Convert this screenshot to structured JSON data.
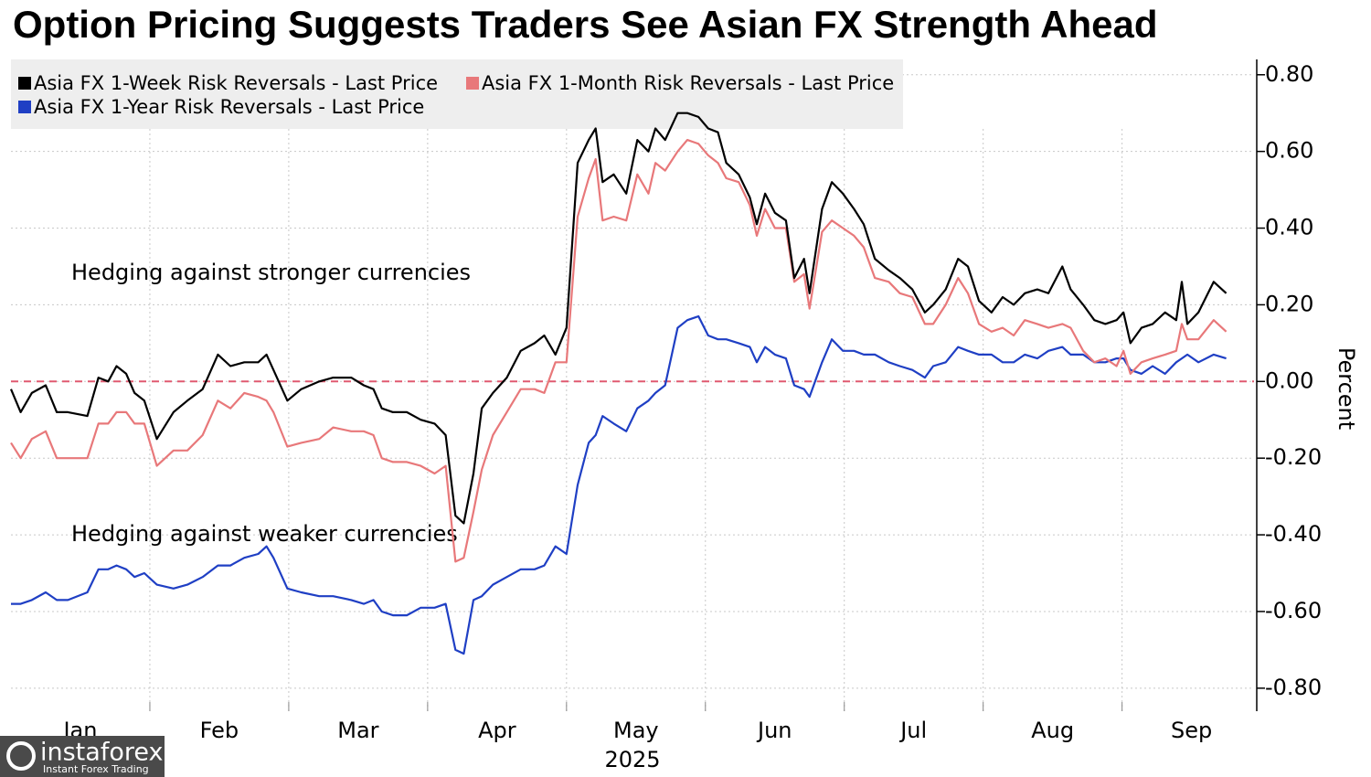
{
  "chart_data": {
    "type": "line",
    "title": "Option Pricing Suggests Traders See Asian FX Strength Ahead",
    "y_axis_label": "Percent",
    "x_axis_sublabel": "2025",
    "annotations": [
      "Hedging against stronger currencies",
      "Hedging against weaker currencies"
    ],
    "xlim": [
      0,
      8.95
    ],
    "xticks": [
      {
        "value": 0.5,
        "label": "Jan"
      },
      {
        "value": 1.5,
        "label": "Feb"
      },
      {
        "value": 2.5,
        "label": "Mar"
      },
      {
        "value": 3.5,
        "label": "Apr"
      },
      {
        "value": 4.5,
        "label": "May"
      },
      {
        "value": 5.5,
        "label": "Jun"
      },
      {
        "value": 6.5,
        "label": "Jul"
      },
      {
        "value": 7.5,
        "label": "Aug"
      },
      {
        "value": 8.5,
        "label": "Sep"
      }
    ],
    "ylim": [
      -0.86,
      0.84
    ],
    "yticks": [
      {
        "value": 0.8,
        "label": "0.80"
      },
      {
        "value": 0.6,
        "label": "0.60"
      },
      {
        "value": 0.4,
        "label": "0.40"
      },
      {
        "value": 0.2,
        "label": "0.20"
      },
      {
        "value": 0,
        "label": "0.00"
      },
      {
        "value": -0.2,
        "label": "-0.20"
      },
      {
        "value": -0.4,
        "label": "-0.40"
      },
      {
        "value": -0.6,
        "label": "-0.60"
      },
      {
        "value": -0.8,
        "label": "-0.80"
      }
    ],
    "grid": true,
    "y_axis_side": "right",
    "legend": "top-left",
    "zero_line": {
      "color": "#e05a70",
      "dashed": true
    },
    "x": [
      0,
      0.07,
      0.15,
      0.25,
      0.33,
      0.41,
      0.55,
      0.63,
      0.7,
      0.76,
      0.83,
      0.89,
      0.96,
      1.05,
      1.17,
      1.27,
      1.38,
      1.49,
      1.58,
      1.68,
      1.78,
      1.84,
      1.89,
      1.99,
      2.09,
      2.22,
      2.32,
      2.45,
      2.54,
      2.61,
      2.67,
      2.75,
      2.85,
      2.95,
      3.05,
      3.13,
      3.2,
      3.26,
      3.33,
      3.39,
      3.47,
      3.57,
      3.67,
      3.77,
      3.84,
      3.92,
      4.0,
      4.08,
      4.16,
      4.21,
      4.26,
      4.34,
      4.43,
      4.51,
      4.59,
      4.64,
      4.71,
      4.8,
      4.87,
      4.95,
      5.02,
      5.09,
      5.15,
      5.24,
      5.32,
      5.37,
      5.43,
      5.5,
      5.58,
      5.64,
      5.71,
      5.75,
      5.84,
      5.91,
      5.99,
      6.07,
      6.14,
      6.22,
      6.32,
      6.4,
      6.49,
      6.58,
      6.64,
      6.73,
      6.82,
      6.89,
      6.97,
      7.06,
      7.14,
      7.22,
      7.3,
      7.39,
      7.47,
      7.57,
      7.63,
      7.72,
      7.8,
      7.88,
      7.96,
      8.01,
      8.06,
      8.14,
      8.22,
      8.31,
      8.39,
      8.43,
      8.47,
      8.55,
      8.66,
      8.75
    ],
    "series": [
      {
        "name": "Asia FX 1-Week Risk Reversals - Last Price",
        "color": "#000000",
        "values": [
          -0.02,
          -0.08,
          -0.03,
          -0.01,
          -0.08,
          -0.08,
          -0.09,
          0.01,
          0.0,
          0.04,
          0.02,
          -0.03,
          -0.05,
          -0.15,
          -0.08,
          -0.05,
          -0.02,
          0.07,
          0.04,
          0.05,
          0.05,
          0.07,
          0.03,
          -0.05,
          -0.02,
          0.0,
          0.01,
          0.01,
          -0.01,
          -0.02,
          -0.07,
          -0.08,
          -0.08,
          -0.1,
          -0.11,
          -0.14,
          -0.35,
          -0.37,
          -0.24,
          -0.07,
          -0.03,
          0.01,
          0.08,
          0.1,
          0.12,
          0.07,
          0.14,
          0.57,
          0.63,
          0.66,
          0.52,
          0.54,
          0.49,
          0.63,
          0.6,
          0.66,
          0.63,
          0.7,
          0.7,
          0.69,
          0.66,
          0.65,
          0.57,
          0.54,
          0.48,
          0.41,
          0.49,
          0.44,
          0.42,
          0.27,
          0.32,
          0.23,
          0.45,
          0.52,
          0.49,
          0.45,
          0.41,
          0.32,
          0.29,
          0.27,
          0.24,
          0.18,
          0.2,
          0.24,
          0.32,
          0.3,
          0.21,
          0.18,
          0.22,
          0.2,
          0.23,
          0.24,
          0.23,
          0.3,
          0.24,
          0.2,
          0.16,
          0.15,
          0.16,
          0.18,
          0.1,
          0.14,
          0.15,
          0.18,
          0.16,
          0.26,
          0.15,
          0.18,
          0.26,
          0.23
        ]
      },
      {
        "name": "Asia FX 1-Month Risk Reversals - Last Price",
        "color": "#e8787a",
        "values": [
          -0.16,
          -0.2,
          -0.15,
          -0.13,
          -0.2,
          -0.2,
          -0.2,
          -0.11,
          -0.11,
          -0.08,
          -0.08,
          -0.11,
          -0.11,
          -0.22,
          -0.18,
          -0.18,
          -0.14,
          -0.05,
          -0.07,
          -0.03,
          -0.04,
          -0.05,
          -0.08,
          -0.17,
          -0.16,
          -0.15,
          -0.12,
          -0.13,
          -0.13,
          -0.14,
          -0.2,
          -0.21,
          -0.21,
          -0.22,
          -0.24,
          -0.22,
          -0.47,
          -0.46,
          -0.34,
          -0.23,
          -0.14,
          -0.08,
          -0.02,
          -0.02,
          -0.03,
          0.05,
          0.05,
          0.43,
          0.53,
          0.58,
          0.42,
          0.43,
          0.42,
          0.54,
          0.49,
          0.57,
          0.55,
          0.6,
          0.63,
          0.62,
          0.59,
          0.57,
          0.53,
          0.52,
          0.46,
          0.38,
          0.45,
          0.4,
          0.4,
          0.26,
          0.28,
          0.19,
          0.39,
          0.42,
          0.4,
          0.38,
          0.35,
          0.27,
          0.26,
          0.23,
          0.22,
          0.15,
          0.15,
          0.2,
          0.27,
          0.23,
          0.15,
          0.13,
          0.14,
          0.12,
          0.16,
          0.15,
          0.14,
          0.15,
          0.14,
          0.08,
          0.05,
          0.06,
          0.04,
          0.08,
          0.02,
          0.05,
          0.06,
          0.07,
          0.08,
          0.15,
          0.11,
          0.11,
          0.16,
          0.13
        ]
      },
      {
        "name": "Asia FX 1-Year Risk Reversals - Last Price",
        "color": "#1f3fc4",
        "values": [
          -0.58,
          -0.58,
          -0.57,
          -0.55,
          -0.57,
          -0.57,
          -0.55,
          -0.49,
          -0.49,
          -0.48,
          -0.49,
          -0.51,
          -0.5,
          -0.53,
          -0.54,
          -0.53,
          -0.51,
          -0.48,
          -0.48,
          -0.46,
          -0.45,
          -0.43,
          -0.46,
          -0.54,
          -0.55,
          -0.56,
          -0.56,
          -0.57,
          -0.58,
          -0.57,
          -0.6,
          -0.61,
          -0.61,
          -0.59,
          -0.59,
          -0.58,
          -0.7,
          -0.71,
          -0.57,
          -0.56,
          -0.53,
          -0.51,
          -0.49,
          -0.49,
          -0.48,
          -0.43,
          -0.45,
          -0.27,
          -0.16,
          -0.14,
          -0.09,
          -0.11,
          -0.13,
          -0.07,
          -0.05,
          -0.03,
          -0.01,
          0.14,
          0.16,
          0.17,
          0.12,
          0.11,
          0.11,
          0.1,
          0.09,
          0.05,
          0.09,
          0.07,
          0.06,
          -0.01,
          -0.02,
          -0.04,
          0.05,
          0.11,
          0.08,
          0.08,
          0.07,
          0.07,
          0.05,
          0.04,
          0.03,
          0.01,
          0.04,
          0.05,
          0.09,
          0.08,
          0.07,
          0.07,
          0.05,
          0.05,
          0.07,
          0.06,
          0.08,
          0.09,
          0.07,
          0.07,
          0.05,
          0.05,
          0.06,
          0.06,
          0.03,
          0.02,
          0.04,
          0.02,
          0.05,
          0.06,
          0.07,
          0.05,
          0.07,
          0.06
        ]
      }
    ]
  },
  "watermark": {
    "name": "instaforex",
    "tagline": "Instant Forex Trading"
  }
}
